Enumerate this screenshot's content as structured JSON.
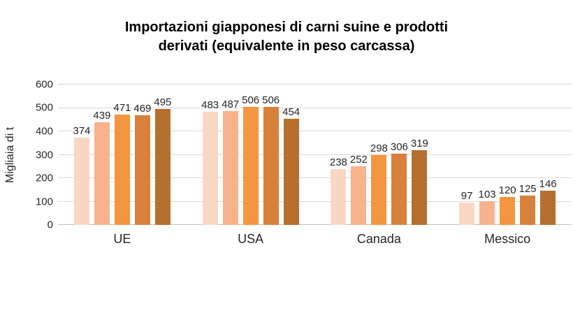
{
  "colors": {
    "background": "#ffffff",
    "title_text": "#000000",
    "axis_text": "#262626",
    "label_text": "#262626",
    "gridline": "#d9d9d9",
    "axis_line": "#bfbfbf"
  },
  "chart_data": {
    "type": "bar",
    "title": "Importazioni giapponesi di carni suine e prodotti derivati (equivalente in peso carcassa)",
    "title_lines": [
      "Importazioni giapponesi di carni suine e prodotti",
      "derivati (equivalente in peso carcassa)"
    ],
    "xlabel": "",
    "ylabel": "Migliaia di t",
    "ylim": [
      0,
      600
    ],
    "ymax": 600,
    "yticks": [
      0,
      100,
      200,
      300,
      400,
      500,
      600
    ],
    "grid": "horizontal",
    "legend": "none",
    "bars_per_group": 5,
    "bar_colors": [
      "#fad7c2",
      "#f8b28c",
      "#f4953f",
      "#d9813c",
      "#b5702f"
    ],
    "categories": [
      "UE",
      "USA",
      "Canada",
      "Messico"
    ],
    "groups": [
      {
        "label": "UE",
        "values": [
          374,
          439,
          471,
          469,
          495
        ]
      },
      {
        "label": "USA",
        "values": [
          483,
          487,
          506,
          506,
          454
        ]
      },
      {
        "label": "Canada",
        "values": [
          238,
          252,
          298,
          306,
          319
        ]
      },
      {
        "label": "Messico",
        "values": [
          97,
          103,
          120,
          125,
          146
        ]
      }
    ]
  }
}
